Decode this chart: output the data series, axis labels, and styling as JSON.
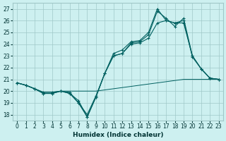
{
  "xlabel": "Humidex (Indice chaleur)",
  "bg_color": "#cdf0f0",
  "grid_color": "#a0c8c8",
  "line_color": "#006060",
  "xlim": [
    -0.5,
    23.5
  ],
  "ylim": [
    17.5,
    27.5
  ],
  "yticks": [
    18,
    19,
    20,
    21,
    22,
    23,
    24,
    25,
    26,
    27
  ],
  "xticks": [
    0,
    1,
    2,
    3,
    4,
    5,
    6,
    7,
    8,
    9,
    10,
    11,
    12,
    13,
    14,
    15,
    16,
    17,
    18,
    19,
    20,
    21,
    22,
    23
  ],
  "series": [
    {
      "x": [
        0,
        1,
        2,
        3,
        4,
        5,
        6,
        7,
        8,
        9,
        10,
        11,
        12,
        13,
        14,
        15,
        16,
        17,
        18,
        19,
        20,
        21,
        22,
        23
      ],
      "y": [
        20.7,
        20.5,
        20.2,
        19.8,
        19.8,
        20.0,
        19.8,
        19.0,
        17.8,
        19.5,
        21.5,
        23.0,
        23.2,
        24.0,
        24.1,
        24.5,
        25.8,
        26.0,
        25.8,
        25.8,
        23.0,
        21.9,
        21.1,
        21.0
      ],
      "marker": true,
      "lw": 0.8
    },
    {
      "x": [
        0,
        1,
        2,
        3,
        4,
        5,
        6,
        7,
        8,
        9,
        10,
        11,
        12,
        13,
        14,
        15,
        16,
        17,
        18,
        19,
        20,
        21,
        22,
        23
      ],
      "y": [
        20.7,
        20.5,
        20.2,
        19.8,
        19.8,
        20.0,
        19.8,
        19.2,
        17.8,
        19.5,
        21.5,
        23.0,
        23.2,
        24.1,
        24.2,
        24.8,
        26.8,
        26.2,
        25.5,
        26.2,
        23.0,
        21.9,
        21.1,
        21.0
      ],
      "marker": true,
      "lw": 0.8
    },
    {
      "x": [
        0,
        1,
        2,
        3,
        4,
        5,
        6,
        7,
        8,
        9,
        10,
        11,
        12,
        13,
        14,
        15,
        16,
        17,
        18,
        19,
        20,
        21,
        22,
        23
      ],
      "y": [
        20.7,
        20.5,
        20.2,
        19.9,
        19.9,
        20.0,
        19.9,
        19.0,
        18.0,
        19.6,
        21.5,
        23.2,
        23.5,
        24.2,
        24.3,
        25.0,
        27.0,
        26.0,
        25.8,
        26.0,
        22.9,
        21.9,
        21.1,
        21.0
      ],
      "marker": true,
      "lw": 0.8
    },
    {
      "x": [
        0,
        1,
        2,
        3,
        4,
        5,
        6,
        7,
        8,
        9,
        10,
        11,
        12,
        13,
        14,
        15,
        16,
        17,
        18,
        19,
        20,
        21,
        22,
        23
      ],
      "y": [
        20.7,
        20.5,
        20.2,
        19.9,
        19.9,
        20.0,
        20.0,
        20.0,
        20.0,
        20.0,
        20.1,
        20.2,
        20.3,
        20.4,
        20.5,
        20.6,
        20.7,
        20.8,
        20.9,
        21.0,
        21.0,
        21.0,
        21.0,
        21.0
      ],
      "marker": false,
      "lw": 0.7
    }
  ],
  "xlabel_fontsize": 6.5,
  "tick_fontsize": 5.5,
  "xlabel_color": "#003333",
  "tick_color": "#003333"
}
